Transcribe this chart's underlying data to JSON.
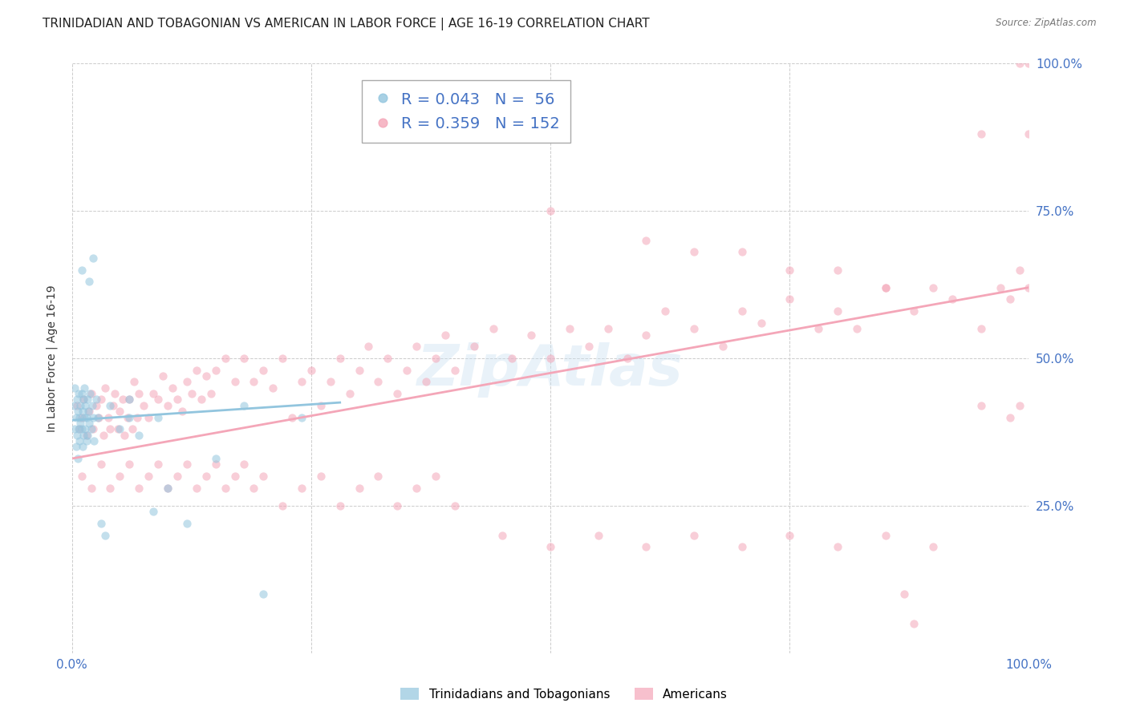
{
  "title": "TRINIDADIAN AND TOBAGONIAN VS AMERICAN IN LABOR FORCE | AGE 16-19 CORRELATION CHART",
  "source": "Source: ZipAtlas.com",
  "ylabel": "In Labor Force | Age 16-19",
  "xlim": [
    0.0,
    1.0
  ],
  "ylim": [
    0.0,
    1.0
  ],
  "legend1_label": "R = 0.043   N =  56",
  "legend2_label": "R = 0.359   N = 152",
  "legend1_color": "#92c5de",
  "legend2_color": "#f4a6b8",
  "watermark": "ZipAtlas",
  "blue_line_x": [
    0.0,
    0.28
  ],
  "blue_line_y": [
    0.395,
    0.425
  ],
  "pink_line_x": [
    0.0,
    1.0
  ],
  "pink_line_y": [
    0.33,
    0.62
  ],
  "background_color": "#ffffff",
  "scatter_alpha": 0.55,
  "scatter_size": 55,
  "grid_color": "#cccccc",
  "tick_color": "#4472c4",
  "title_fontsize": 11,
  "axis_label_fontsize": 10,
  "tick_fontsize": 11,
  "blue_scatter_x": [
    0.002,
    0.003,
    0.003,
    0.004,
    0.004,
    0.005,
    0.005,
    0.006,
    0.006,
    0.007,
    0.007,
    0.008,
    0.008,
    0.009,
    0.009,
    0.01,
    0.01,
    0.011,
    0.011,
    0.012,
    0.012,
    0.013,
    0.013,
    0.014,
    0.014,
    0.015,
    0.015,
    0.016,
    0.016,
    0.017,
    0.018,
    0.019,
    0.02,
    0.021,
    0.022,
    0.023,
    0.025,
    0.027,
    0.03,
    0.035,
    0.04,
    0.05,
    0.06,
    0.07,
    0.085,
    0.1,
    0.12,
    0.15,
    0.2,
    0.24,
    0.01,
    0.018,
    0.022,
    0.06,
    0.09,
    0.18
  ],
  "blue_scatter_y": [
    0.42,
    0.38,
    0.45,
    0.4,
    0.35,
    0.43,
    0.37,
    0.41,
    0.33,
    0.44,
    0.38,
    0.4,
    0.36,
    0.42,
    0.39,
    0.38,
    0.44,
    0.41,
    0.35,
    0.43,
    0.37,
    0.4,
    0.45,
    0.38,
    0.42,
    0.36,
    0.4,
    0.43,
    0.37,
    0.41,
    0.39,
    0.44,
    0.38,
    0.42,
    0.4,
    0.36,
    0.43,
    0.4,
    0.22,
    0.2,
    0.42,
    0.38,
    0.4,
    0.37,
    0.24,
    0.28,
    0.22,
    0.33,
    0.1,
    0.4,
    0.65,
    0.63,
    0.67,
    0.43,
    0.4,
    0.42
  ],
  "pink_scatter_x": [
    0.005,
    0.008,
    0.01,
    0.012,
    0.015,
    0.018,
    0.02,
    0.022,
    0.025,
    0.028,
    0.03,
    0.033,
    0.035,
    0.038,
    0.04,
    0.043,
    0.045,
    0.048,
    0.05,
    0.053,
    0.055,
    0.058,
    0.06,
    0.063,
    0.065,
    0.068,
    0.07,
    0.075,
    0.08,
    0.085,
    0.09,
    0.095,
    0.1,
    0.105,
    0.11,
    0.115,
    0.12,
    0.125,
    0.13,
    0.135,
    0.14,
    0.145,
    0.15,
    0.16,
    0.17,
    0.18,
    0.19,
    0.2,
    0.21,
    0.22,
    0.23,
    0.24,
    0.25,
    0.26,
    0.27,
    0.28,
    0.29,
    0.3,
    0.31,
    0.32,
    0.33,
    0.34,
    0.35,
    0.36,
    0.37,
    0.38,
    0.39,
    0.4,
    0.42,
    0.44,
    0.46,
    0.48,
    0.5,
    0.52,
    0.54,
    0.56,
    0.58,
    0.6,
    0.62,
    0.65,
    0.68,
    0.7,
    0.72,
    0.75,
    0.78,
    0.8,
    0.82,
    0.85,
    0.88,
    0.9,
    0.92,
    0.95,
    0.97,
    0.98,
    0.99,
    1.0,
    0.01,
    0.02,
    0.03,
    0.04,
    0.05,
    0.06,
    0.07,
    0.08,
    0.09,
    0.1,
    0.11,
    0.12,
    0.13,
    0.14,
    0.15,
    0.16,
    0.17,
    0.18,
    0.19,
    0.2,
    0.22,
    0.24,
    0.26,
    0.28,
    0.3,
    0.32,
    0.34,
    0.36,
    0.38,
    0.4,
    0.45,
    0.5,
    0.55,
    0.6,
    0.65,
    0.7,
    0.75,
    0.8,
    0.85,
    0.9,
    0.5,
    0.6,
    0.65,
    0.7,
    0.75,
    0.8,
    0.85,
    0.95,
    0.99,
    1.0,
    0.95,
    1.0,
    0.98,
    0.99,
    0.87,
    0.88
  ],
  "pink_scatter_y": [
    0.42,
    0.38,
    0.4,
    0.43,
    0.37,
    0.41,
    0.44,
    0.38,
    0.42,
    0.4,
    0.43,
    0.37,
    0.45,
    0.4,
    0.38,
    0.42,
    0.44,
    0.38,
    0.41,
    0.43,
    0.37,
    0.4,
    0.43,
    0.38,
    0.46,
    0.4,
    0.44,
    0.42,
    0.4,
    0.44,
    0.43,
    0.47,
    0.42,
    0.45,
    0.43,
    0.41,
    0.46,
    0.44,
    0.48,
    0.43,
    0.47,
    0.44,
    0.48,
    0.5,
    0.46,
    0.5,
    0.46,
    0.48,
    0.45,
    0.5,
    0.4,
    0.46,
    0.48,
    0.42,
    0.46,
    0.5,
    0.44,
    0.48,
    0.52,
    0.46,
    0.5,
    0.44,
    0.48,
    0.52,
    0.46,
    0.5,
    0.54,
    0.48,
    0.52,
    0.55,
    0.5,
    0.54,
    0.5,
    0.55,
    0.52,
    0.55,
    0.5,
    0.54,
    0.58,
    0.55,
    0.52,
    0.58,
    0.56,
    0.6,
    0.55,
    0.58,
    0.55,
    0.62,
    0.58,
    0.62,
    0.6,
    0.55,
    0.62,
    0.6,
    0.65,
    0.62,
    0.3,
    0.28,
    0.32,
    0.28,
    0.3,
    0.32,
    0.28,
    0.3,
    0.32,
    0.28,
    0.3,
    0.32,
    0.28,
    0.3,
    0.32,
    0.28,
    0.3,
    0.32,
    0.28,
    0.3,
    0.25,
    0.28,
    0.3,
    0.25,
    0.28,
    0.3,
    0.25,
    0.28,
    0.3,
    0.25,
    0.2,
    0.18,
    0.2,
    0.18,
    0.2,
    0.18,
    0.2,
    0.18,
    0.2,
    0.18,
    0.75,
    0.7,
    0.68,
    0.68,
    0.65,
    0.65,
    0.62,
    0.42,
    1.0,
    1.0,
    0.88,
    0.88,
    0.4,
    0.42,
    0.1,
    0.05
  ]
}
